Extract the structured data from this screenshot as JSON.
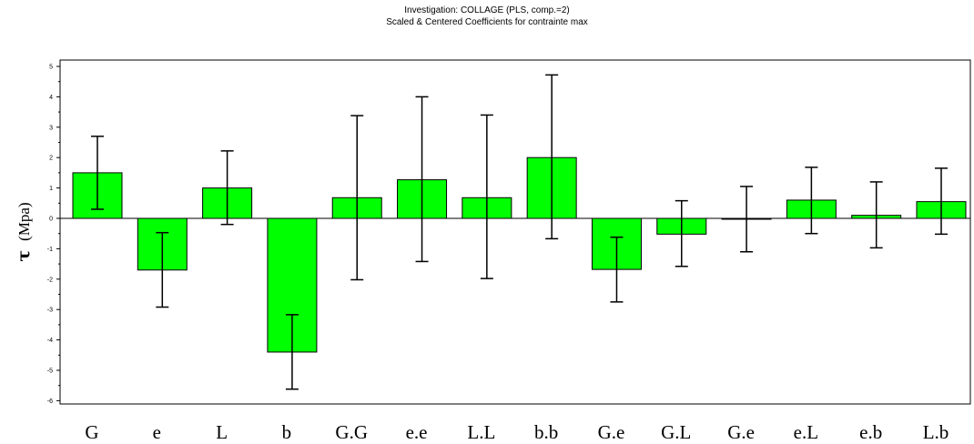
{
  "chart_data": {
    "type": "bar",
    "title": "Investigation: COLLAGE (PLS, comp.=2)",
    "subtitle": "Scaled & Centered Coefficients for contrainte max",
    "ylabel_symbol": "τ",
    "ylabel_unit": "(Mpa)",
    "xlabel": "",
    "ylim": [
      -6.1,
      5.15
    ],
    "y_ticks": [
      -6,
      -5,
      -4,
      -3,
      -2,
      -1,
      0,
      1,
      2,
      3,
      4,
      5
    ],
    "grid": false,
    "legend": "none",
    "bar_color": "#00ff00",
    "categories": [
      "G",
      "e",
      "L",
      "b",
      "G.G",
      "e.e",
      "L.L",
      "b.b",
      "G.e",
      "G.L",
      "G.e",
      "e.L",
      "e.b",
      "L.b"
    ],
    "values": [
      1.5,
      -1.7,
      1.0,
      -4.4,
      0.68,
      1.27,
      0.68,
      2.0,
      -1.68,
      -0.52,
      -0.02,
      0.6,
      0.1,
      0.55
    ],
    "error_low": [
      0.3,
      -2.92,
      -0.2,
      -5.62,
      -2.02,
      -1.42,
      -1.98,
      -0.67,
      -2.75,
      -1.58,
      -1.1,
      -0.5,
      -0.97,
      -0.52
    ],
    "error_high": [
      2.7,
      -0.47,
      2.22,
      -3.17,
      3.38,
      4.0,
      3.4,
      4.72,
      -0.62,
      0.58,
      1.05,
      1.68,
      1.2,
      1.65
    ]
  }
}
